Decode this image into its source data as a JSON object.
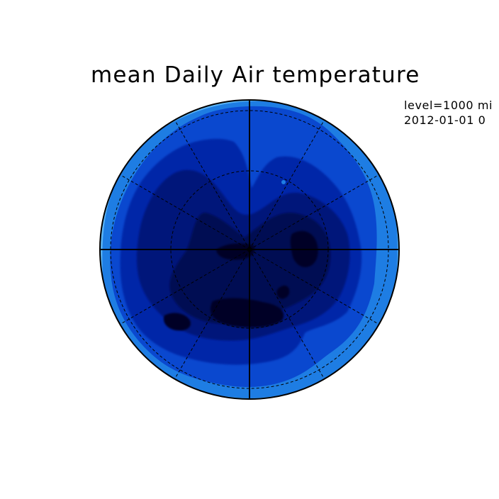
{
  "title": "mean Daily Air temperature",
  "meta": {
    "level_text": "level=1000 mi",
    "date_text": "2012-01-01 0"
  },
  "map": {
    "projection": "polar stereographic",
    "colors": {
      "outer_lightest": "#5ab4f5",
      "light": "#1e7de3",
      "mid": "#0a48cf",
      "dark_mid": "#0225a8",
      "dark": "#02137a",
      "darker": "#010c52",
      "darkest": "#000428",
      "grid": "#000000"
    }
  }
}
